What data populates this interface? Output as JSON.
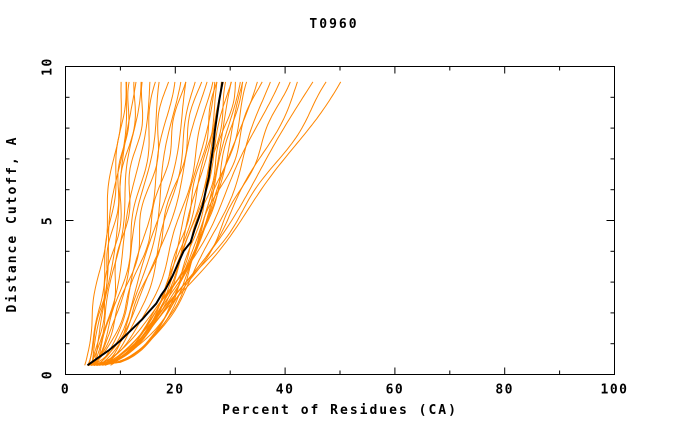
{
  "window": {
    "description": "Static plot image: per-model accuracy curves for CASP target T0960"
  },
  "chart_data": {
    "type": "line",
    "title": "T0960",
    "xlabel": "Percent of Residues (CA)",
    "ylabel": "Distance Cutoff, A",
    "xlim": [
      0,
      100
    ],
    "ylim": [
      0,
      10
    ],
    "x_major_ticks": [
      0,
      20,
      40,
      60,
      80,
      100
    ],
    "x_minor_step": 10,
    "y_major_ticks": [
      0,
      5,
      10
    ],
    "y_minor_step": 1,
    "grid": false,
    "legend": "none",
    "frame": "full-box-with-inward-ticks",
    "colors": {
      "models": "#ff8600",
      "best_model": "#000000",
      "axis": "#000000",
      "background": "#ffffff"
    },
    "series": [
      {
        "name": "highlighted-model-curve",
        "color_key": "best_model",
        "line_width": 2,
        "points": [
          [
            4.0,
            0.3
          ],
          [
            6.0,
            0.55
          ],
          [
            8.0,
            0.8
          ],
          [
            10.0,
            1.1
          ],
          [
            12.0,
            1.45
          ],
          [
            14.0,
            1.8
          ],
          [
            15.0,
            2.0
          ],
          [
            16.5,
            2.3
          ],
          [
            17.5,
            2.6
          ],
          [
            18.3,
            2.8
          ],
          [
            19.5,
            3.2
          ],
          [
            20.5,
            3.6
          ],
          [
            21.5,
            4.0
          ],
          [
            22.8,
            4.3
          ],
          [
            23.5,
            4.7
          ],
          [
            24.3,
            5.1
          ],
          [
            25.0,
            5.5
          ],
          [
            25.6,
            6.0
          ],
          [
            26.1,
            6.4
          ],
          [
            26.5,
            6.9
          ],
          [
            26.9,
            7.4
          ],
          [
            27.2,
            7.9
          ],
          [
            27.6,
            8.4
          ],
          [
            28.0,
            8.9
          ],
          [
            28.3,
            9.2
          ],
          [
            28.6,
            9.5
          ]
        ]
      }
    ],
    "model_curves": {
      "note": "ensemble of server model curves (orange); each param row = [x_at_y0, x_at_ytop, shape_exponent, wiggle_amp, wiggle_freq, wiggle_phase]",
      "color_key": "models",
      "line_width": 1,
      "y_start": 0.3,
      "y_end": 9.5,
      "count": 42,
      "params": [
        [
          3.5,
          10.5,
          0.85,
          0.5,
          1.7,
          0.5
        ],
        [
          4.2,
          11.0,
          0.8,
          0.4,
          2.1,
          2.0
        ],
        [
          4.8,
          11.5,
          0.9,
          0.6,
          1.3,
          4.1
        ],
        [
          4.0,
          12.0,
          0.75,
          0.5,
          2.4,
          1.2
        ],
        [
          5.2,
          12.5,
          0.85,
          0.4,
          1.1,
          3.3
        ],
        [
          4.6,
          13.0,
          0.8,
          0.7,
          1.9,
          5.0
        ],
        [
          5.0,
          13.5,
          0.72,
          0.5,
          1.5,
          0.8
        ],
        [
          5.6,
          14.5,
          0.78,
          0.6,
          2.2,
          2.7
        ],
        [
          4.2,
          15.5,
          0.66,
          0.5,
          1.2,
          4.6
        ],
        [
          4.6,
          16.5,
          0.6,
          0.6,
          1.8,
          1.5
        ],
        [
          5.1,
          17.5,
          0.65,
          0.5,
          1.4,
          3.9
        ],
        [
          4.0,
          18.5,
          0.55,
          0.7,
          2.0,
          0.3
        ],
        [
          5.6,
          19.5,
          0.6,
          0.5,
          1.6,
          5.5
        ],
        [
          6.0,
          20.5,
          0.5,
          0.6,
          1.2,
          2.4
        ],
        [
          4.6,
          21.5,
          0.62,
          0.5,
          2.3,
          4.4
        ],
        [
          5.1,
          22.5,
          0.58,
          0.7,
          1.0,
          1.1
        ],
        [
          6.1,
          23.5,
          0.52,
          0.5,
          1.7,
          3.0
        ],
        [
          5.6,
          24.5,
          0.6,
          0.6,
          2.1,
          5.8
        ],
        [
          4.1,
          25.5,
          0.55,
          0.5,
          1.3,
          0.9
        ],
        [
          4.2,
          26.5,
          0.45,
          0.4,
          1.9,
          2.2
        ],
        [
          4.7,
          27.0,
          0.4,
          0.5,
          1.1,
          4.8
        ],
        [
          5.2,
          27.5,
          0.42,
          0.4,
          2.5,
          1.6
        ],
        [
          4.1,
          28.0,
          0.38,
          0.5,
          1.4,
          3.6
        ],
        [
          5.7,
          28.5,
          0.45,
          0.4,
          1.8,
          5.2
        ],
        [
          4.6,
          29.0,
          0.4,
          0.5,
          1.2,
          0.6
        ],
        [
          5.1,
          29.5,
          0.36,
          0.4,
          2.2,
          2.9
        ],
        [
          4.2,
          30.0,
          0.42,
          0.5,
          1.6,
          4.2
        ],
        [
          5.6,
          30.5,
          0.38,
          0.4,
          1.0,
          1.9
        ],
        [
          4.7,
          31.0,
          0.44,
          0.5,
          2.4,
          5.6
        ],
        [
          5.2,
          31.5,
          0.4,
          0.4,
          1.5,
          0.2
        ],
        [
          4.1,
          32.0,
          0.37,
          0.5,
          1.9,
          3.4
        ],
        [
          5.7,
          32.5,
          0.42,
          0.4,
          1.3,
          5.9
        ],
        [
          5.2,
          33.5,
          0.5,
          0.6,
          1.7,
          1.4
        ],
        [
          6.2,
          34.5,
          0.55,
          0.5,
          1.1,
          3.8
        ],
        [
          5.7,
          35.5,
          0.6,
          0.7,
          2.0,
          0.4
        ],
        [
          6.7,
          37.0,
          0.52,
          0.5,
          1.5,
          5.4
        ],
        [
          5.2,
          38.5,
          0.65,
          0.6,
          1.2,
          2.6
        ],
        [
          6.2,
          40.5,
          0.6,
          0.5,
          2.3,
          4.9
        ],
        [
          7.2,
          42.5,
          0.7,
          0.6,
          1.6,
          1.0
        ],
        [
          6.7,
          45.0,
          0.75,
          0.5,
          1.0,
          3.2
        ],
        [
          7.2,
          48.0,
          0.8,
          0.6,
          1.9,
          5.7
        ],
        [
          8.2,
          50.0,
          0.85,
          0.5,
          1.4,
          2.1
        ]
      ]
    }
  }
}
